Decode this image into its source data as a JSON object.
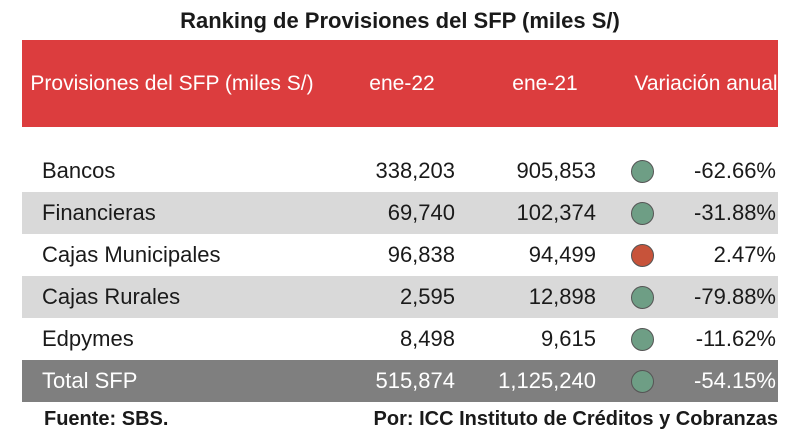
{
  "title": "Ranking de Provisiones del SFP (miles S/)",
  "header": {
    "label": "Provisiones del SFP (miles S/)",
    "col1": "ene-22",
    "col2": "ene-21",
    "col3": "Variación anual",
    "color": "#dc3d3e"
  },
  "rows": [
    {
      "label": "Bancos",
      "v1": "338,203",
      "v2": "905,853",
      "indicator": "#6e9e85",
      "v3": "-62.66%"
    },
    {
      "label": "Financieras",
      "v1": "69,740",
      "v2": "102,374",
      "indicator": "#6e9e85",
      "v3": "-31.88%"
    },
    {
      "label": "Cajas Municipales",
      "v1": "96,838",
      "v2": "94,499",
      "indicator": "#c7533a",
      "v3": "2.47%"
    },
    {
      "label": "Cajas Rurales",
      "v1": "2,595",
      "v2": "12,898",
      "indicator": "#6e9e85",
      "v3": "-79.88%"
    },
    {
      "label": "Edpymes",
      "v1": "8,498",
      "v2": "9,615",
      "indicator": "#6e9e85",
      "v3": "-11.62%"
    },
    {
      "label": "Total SFP",
      "v1": "515,874",
      "v2": "1,125,240",
      "indicator": "#6e9e85",
      "v3": "-54.15%"
    }
  ],
  "footer": {
    "source": "Fuente: SBS.",
    "author": "Por: ICC Instituto de Créditos y Cobranzas"
  }
}
